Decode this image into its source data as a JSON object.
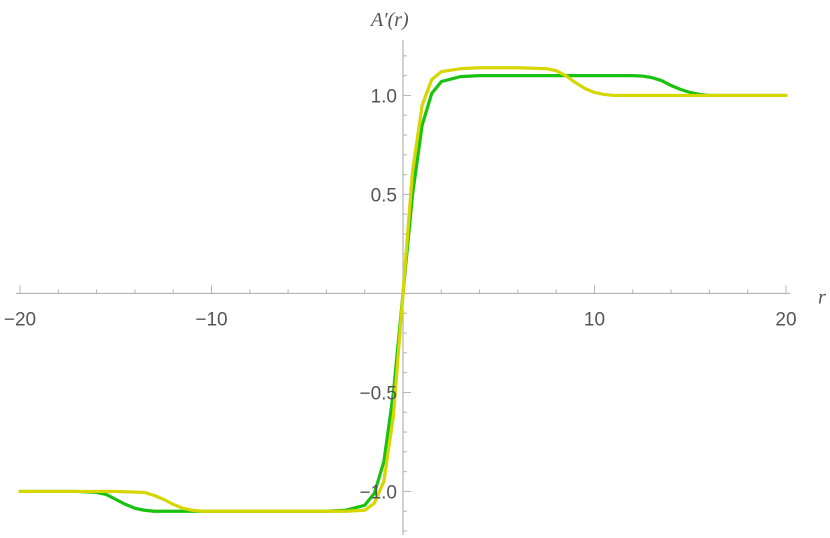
{
  "chart_data": {
    "type": "line",
    "title": "",
    "xlabel": "r",
    "ylabel": "A′(r)",
    "xlim": [
      -20,
      20
    ],
    "ylim": [
      -1.22,
      1.28
    ],
    "x_ticks": [
      {
        "value": -20,
        "label": "−20"
      },
      {
        "value": -10,
        "label": "−10"
      },
      {
        "value": 10,
        "label": "10"
      },
      {
        "value": 20,
        "label": "20"
      }
    ],
    "y_ticks": [
      {
        "value": 1.0,
        "label": "1.0"
      },
      {
        "value": 0.5,
        "label": "0.5"
      },
      {
        "value": -0.5,
        "label": "−0.5"
      },
      {
        "value": -1.0,
        "label": "−1.0"
      }
    ],
    "x_minor_step": 2,
    "y_minor_step": 0.1,
    "grid": false,
    "series": [
      {
        "color": "#19c20f",
        "x": [
          -20,
          -17,
          -16,
          -15.5,
          -15,
          -14.5,
          -14,
          -13.5,
          -13,
          -12,
          -10,
          -6,
          -4,
          -3,
          -2,
          -1.5,
          -1,
          -0.5,
          0,
          0.5,
          1,
          1.5,
          2,
          3,
          4,
          8,
          12,
          12.5,
          13,
          13.5,
          14,
          14.5,
          15,
          15.5,
          16,
          17,
          20
        ],
        "y": [
          -1.0,
          -1.0,
          -1.005,
          -1.015,
          -1.04,
          -1.065,
          -1.085,
          -1.095,
          -1.1,
          -1.1,
          -1.1,
          -1.1,
          -1.1,
          -1.095,
          -1.07,
          -1.01,
          -0.85,
          -0.5,
          0.0,
          0.5,
          0.85,
          1.01,
          1.07,
          1.095,
          1.1,
          1.1,
          1.1,
          1.098,
          1.09,
          1.075,
          1.05,
          1.03,
          1.015,
          1.005,
          1.0,
          1.0,
          1.0
        ]
      },
      {
        "color": "#d6d600",
        "x": [
          -20,
          -15,
          -13.5,
          -13,
          -12.5,
          -12,
          -11.5,
          -11,
          -10.5,
          -10,
          -8,
          -6,
          -4,
          -3,
          -2,
          -1.5,
          -1,
          -0.5,
          0,
          0.5,
          1,
          1.5,
          2,
          3,
          4,
          6,
          7.5,
          8,
          8.5,
          9,
          9.5,
          10,
          10.5,
          11,
          12,
          15,
          20
        ],
        "y": [
          -1.0,
          -1.0,
          -1.005,
          -1.02,
          -1.04,
          -1.065,
          -1.085,
          -1.095,
          -1.1,
          -1.1,
          -1.1,
          -1.1,
          -1.1,
          -1.1,
          -1.095,
          -1.06,
          -0.95,
          -0.62,
          0.0,
          0.62,
          0.95,
          1.08,
          1.12,
          1.135,
          1.14,
          1.14,
          1.135,
          1.125,
          1.1,
          1.065,
          1.035,
          1.015,
          1.005,
          1.0,
          1.0,
          1.0,
          1.0
        ]
      }
    ]
  }
}
